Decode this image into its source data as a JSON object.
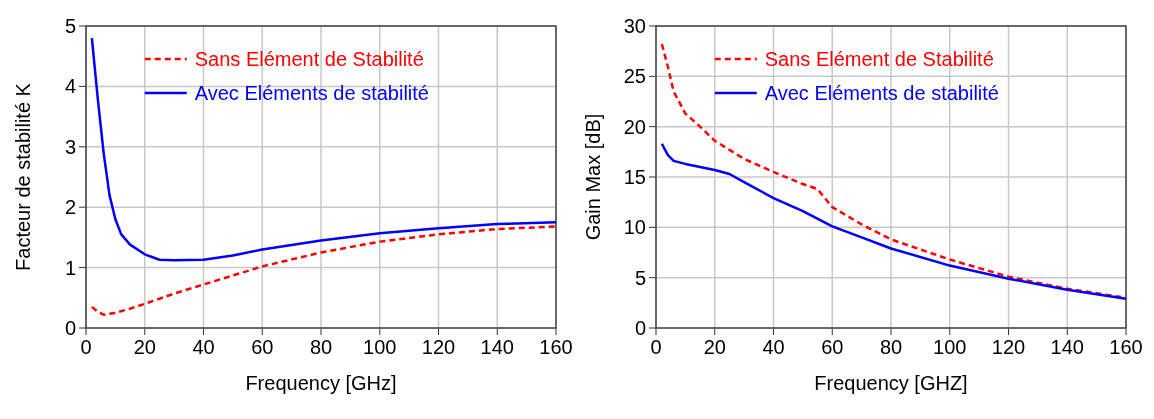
{
  "chart_data": [
    {
      "type": "line",
      "xlabel": "Frequency [GHz]",
      "ylabel": "Facteur de stabilité K",
      "xlim": [
        0,
        160
      ],
      "xticks": [
        0,
        20,
        40,
        60,
        80,
        100,
        120,
        140,
        160
      ],
      "ylim": [
        0,
        5
      ],
      "yticks": [
        0,
        1,
        2,
        3,
        4,
        5
      ],
      "grid": true,
      "legend": "top",
      "series": [
        {
          "name": "Sans Elément de Stabilité",
          "color": "#ff0000",
          "line_style": "dashed",
          "x": [
            2,
            4,
            6,
            10,
            15,
            20,
            30,
            40,
            50,
            60,
            80,
            100,
            120,
            140,
            160
          ],
          "values": [
            0.35,
            0.27,
            0.22,
            0.25,
            0.32,
            0.4,
            0.57,
            0.72,
            0.87,
            1.02,
            1.25,
            1.43,
            1.55,
            1.64,
            1.68
          ]
        },
        {
          "name": "Avec Eléments de stabilité",
          "color": "#0000ff",
          "line_style": "solid",
          "x": [
            2,
            4,
            6,
            8,
            10,
            12,
            15,
            20,
            25,
            30,
            40,
            50,
            60,
            80,
            100,
            120,
            140,
            160
          ],
          "values": [
            4.8,
            3.8,
            2.9,
            2.2,
            1.8,
            1.55,
            1.38,
            1.22,
            1.13,
            1.12,
            1.13,
            1.2,
            1.3,
            1.45,
            1.57,
            1.65,
            1.72,
            1.75
          ]
        }
      ]
    },
    {
      "type": "line",
      "xlabel": "Frequency [GHZ]",
      "ylabel": "Gain Max [dB]",
      "xlim": [
        0,
        160
      ],
      "xticks": [
        0,
        20,
        40,
        60,
        80,
        100,
        120,
        140,
        160
      ],
      "ylim": [
        0,
        30
      ],
      "yticks": [
        0,
        5,
        10,
        15,
        20,
        25,
        30
      ],
      "grid": true,
      "legend": "top",
      "series": [
        {
          "name": "Sans Elément de Stabilité",
          "color": "#ff0000",
          "line_style": "dashed",
          "x": [
            2,
            4,
            6,
            10,
            15,
            20,
            30,
            40,
            50,
            55,
            60,
            70,
            80,
            100,
            120,
            140,
            160
          ],
          "values": [
            28.2,
            26,
            23.5,
            21.3,
            20,
            18.6,
            16.8,
            15.5,
            14.3,
            13.8,
            12,
            10.3,
            8.8,
            6.8,
            5.1,
            3.9,
            3.0
          ]
        },
        {
          "name": "Avec Eléments de stabilité",
          "color": "#0000ff",
          "line_style": "solid",
          "x": [
            2,
            4,
            6,
            10,
            20,
            25,
            30,
            40,
            50,
            60,
            70,
            80,
            100,
            120,
            140,
            160
          ],
          "values": [
            18.3,
            17.2,
            16.6,
            16.3,
            15.7,
            15.3,
            14.5,
            12.9,
            11.6,
            10.1,
            9,
            7.9,
            6.2,
            4.9,
            3.8,
            2.9
          ]
        }
      ]
    }
  ]
}
